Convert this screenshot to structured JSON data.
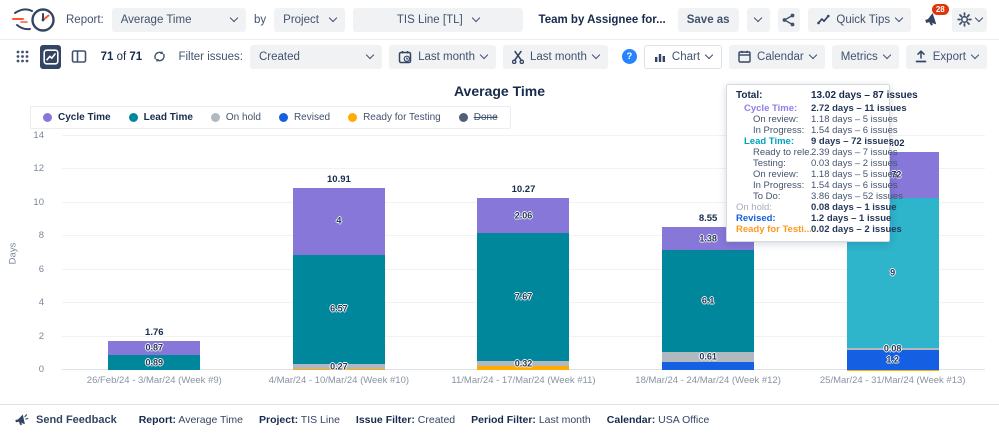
{
  "colors": {
    "purple": "#8777D9",
    "teal": "#00879C",
    "teal_highlight": "#2EB4CB",
    "gray": "#B2B8C0",
    "blue": "#1560E2",
    "orange": "#FFAB00",
    "done": "#505F79",
    "accent_navy": "#172B4D",
    "badge_red": "#DE350B",
    "help_blue": "#2684FF",
    "tt_purple": "#8F7EE7",
    "tt_teal": "#00A3BF",
    "tt_muted": "#A5ADBA",
    "tt_blue": "#1560E2",
    "tt_orange": "#FF991F",
    "text_dark": "#172B4D",
    "text_default": "#44546F"
  },
  "icons": {
    "logo": "stopwatch-with-speed-lines",
    "share": "share-nodes",
    "quick_tips": "trend-line",
    "notifications": "megaphone",
    "settings": "gear",
    "view_grid": "grid-dots",
    "view_chart": "line-chart",
    "view_board": "board-columns",
    "refresh": "refresh-arrows",
    "issue_period": "calendar-clock",
    "trim_period": "scissors",
    "help": "question-circle",
    "chart_menu": "bar-chart",
    "calendar_menu": "calendar",
    "export": "upload-arrow",
    "feedback": "megaphone"
  },
  "header": {
    "report_label": "Report:",
    "report_value": "Average Time",
    "by_label": "by",
    "group_value": "Project",
    "project_value": "TIS Line [TL]",
    "team_text": "Team by Assignee for...",
    "save_as": "Save as",
    "quick_tips": "Quick Tips",
    "notification_count": "28"
  },
  "toolbar": {
    "count_current": "71",
    "count_of": "of",
    "count_total": "71",
    "filter_issues_label": "Filter issues:",
    "issue_filter_value": "Created",
    "period_value": "Last month",
    "trim_value": "Last month",
    "chart_btn": "Chart",
    "calendar_btn": "Calendar",
    "metrics_btn": "Metrics",
    "export_btn": "Export"
  },
  "chart_data": {
    "type": "stacked-bar",
    "title": "Average Time",
    "xlabel": "",
    "ylabel": "Days",
    "ylim": [
      0,
      14
    ],
    "yticks": [
      0,
      2,
      4,
      6,
      8,
      10,
      12,
      14
    ],
    "grid": true,
    "legend_position": "top-left",
    "categories": [
      "26/Feb/24 - 3/Mar/24 (Week #9)",
      "4/Mar/24 - 10/Mar/24 (Week #10)",
      "11/Mar/24 - 17/Mar/24 (Week #11)",
      "18/Mar/24 - 24/Mar/24 (Week #12)",
      "25/Mar/24 - 31/Mar/24 (Week #13)"
    ],
    "totals": [
      1.76,
      10.91,
      10.27,
      8.55,
      13.02
    ],
    "legend": [
      {
        "label": "Cycle Time",
        "color": "purple",
        "bold": true,
        "struck": false
      },
      {
        "label": "Lead Time",
        "color": "teal",
        "bold": true,
        "struck": false
      },
      {
        "label": "On hold",
        "color": "gray",
        "bold": false,
        "struck": false
      },
      {
        "label": "Revised",
        "color": "blue",
        "bold": false,
        "struck": false
      },
      {
        "label": "Ready for Testing",
        "color": "orange",
        "bold": false,
        "struck": false
      },
      {
        "label": "Done",
        "color": "done",
        "bold": false,
        "struck": true
      }
    ],
    "bars": [
      {
        "label": "26/Feb/24 - 3/Mar/24 (Week #9)",
        "total": 1.76,
        "total_label": "1.76",
        "segments": [
          {
            "name": "Lead Time",
            "value": 0.89,
            "label": "0.89",
            "color": "teal"
          },
          {
            "name": "Cycle Time",
            "value": 0.87,
            "label": "0.87",
            "color": "purple"
          }
        ]
      },
      {
        "label": "4/Mar/24 - 10/Mar/24 (Week #10)",
        "total": 10.91,
        "total_label": "10.91",
        "segments": [
          {
            "name": "Ready for Testing",
            "value": 0.07,
            "label": "",
            "color": "orange"
          },
          {
            "name": "On hold",
            "value": 0.27,
            "label": "0.27",
            "color": "gray"
          },
          {
            "name": "Lead Time",
            "value": 6.57,
            "label": "6.57",
            "color": "teal"
          },
          {
            "name": "Cycle Time",
            "value": 4,
            "label": "4",
            "color": "purple"
          }
        ]
      },
      {
        "label": "11/Mar/24 - 17/Mar/24 (Week #11)",
        "total": 10.27,
        "total_label": "10.27",
        "segments": [
          {
            "name": "Ready for Testing",
            "value": 0.22,
            "label": "",
            "color": "orange"
          },
          {
            "name": "On hold",
            "value": 0.32,
            "label": "0.32",
            "color": "gray"
          },
          {
            "name": "Lead Time",
            "value": 7.67,
            "label": "7.67",
            "color": "teal"
          },
          {
            "name": "Cycle Time",
            "value": 2.06,
            "label": "2.06",
            "color": "purple"
          }
        ]
      },
      {
        "label": "18/Mar/24 - 24/Mar/24 (Week #12)",
        "total": 8.55,
        "total_label": "8.55",
        "segments": [
          {
            "name": "Revised",
            "value": 0.46,
            "label": "",
            "color": "blue"
          },
          {
            "name": "On hold",
            "value": 0.61,
            "label": "0.61",
            "color": "gray"
          },
          {
            "name": "Lead Time",
            "value": 6.1,
            "label": "6.1",
            "color": "teal"
          },
          {
            "name": "Cycle Time",
            "value": 1.38,
            "label": "1.38",
            "color": "purple"
          }
        ]
      },
      {
        "label": "25/Mar/24 - 31/Mar/24 (Week #13)",
        "total": 13.02,
        "total_label": "13.02",
        "segments": [
          {
            "name": "Ready for Testing",
            "value": 0.02,
            "label": "",
            "color": "orange"
          },
          {
            "name": "Revised",
            "value": 1.2,
            "label": "1.2",
            "color": "blue"
          },
          {
            "name": "On hold",
            "value": 0.08,
            "label": "0.08",
            "color": "gray"
          },
          {
            "name": "Lead Time",
            "value": 9,
            "label": "9",
            "color": "teal_highlight"
          },
          {
            "name": "Cycle Time",
            "value": 2.72,
            "label": "2.72",
            "color": "purple"
          }
        ]
      }
    ]
  },
  "tooltip": {
    "rows": [
      {
        "label": "Total:",
        "value": "13.02 days – 87 issues",
        "label_color": "text_dark",
        "indent": 0,
        "bold_label": true,
        "bold_value": true,
        "total": true
      },
      {
        "label": "Cycle Time:",
        "value": "2.72 days – 11 issues",
        "label_color": "tt_purple",
        "indent": 1,
        "bold_label": true,
        "bold_value": true,
        "total": false
      },
      {
        "label": "On review:",
        "value": "1.18 days – 5 issues",
        "label_color": "text_default",
        "indent": 2,
        "bold_label": false,
        "bold_value": false,
        "total": false
      },
      {
        "label": "In Progress:",
        "value": "1.54 days – 6 issues",
        "label_color": "text_default",
        "indent": 2,
        "bold_label": false,
        "bold_value": false,
        "total": false
      },
      {
        "label": "Lead Time:",
        "value": "9 days – 72 issues",
        "label_color": "tt_teal",
        "indent": 1,
        "bold_label": true,
        "bold_value": true,
        "total": false
      },
      {
        "label": "Ready to rele...",
        "value": "2.39 days – 7 issues",
        "label_color": "text_default",
        "indent": 2,
        "bold_label": false,
        "bold_value": false,
        "total": false
      },
      {
        "label": "Testing:",
        "value": "0.03 days – 2 issues",
        "label_color": "text_default",
        "indent": 2,
        "bold_label": false,
        "bold_value": false,
        "total": false
      },
      {
        "label": "On review:",
        "value": "1.18 days – 5 issues",
        "label_color": "text_default",
        "indent": 2,
        "bold_label": false,
        "bold_value": false,
        "total": false
      },
      {
        "label": "In Progress:",
        "value": "1.54 days – 6 issues",
        "label_color": "text_default",
        "indent": 2,
        "bold_label": false,
        "bold_value": false,
        "total": false
      },
      {
        "label": "To Do:",
        "value": "3.86 days – 52 issues",
        "label_color": "text_default",
        "indent": 2,
        "bold_label": false,
        "bold_value": false,
        "total": false
      },
      {
        "label": "On hold:",
        "value": "0.08 days – 1 issue",
        "label_color": "tt_muted",
        "indent": 0,
        "bold_label": false,
        "bold_value": true,
        "total": false
      },
      {
        "label": "Revised:",
        "value": "1.2 days – 1 issue",
        "label_color": "tt_blue",
        "indent": 0,
        "bold_label": true,
        "bold_value": true,
        "total": false
      },
      {
        "label": "Ready for Testi...",
        "value": "0.02 days – 2 issues",
        "label_color": "tt_orange",
        "indent": 0,
        "bold_label": true,
        "bold_value": true,
        "total": false
      }
    ]
  },
  "footer": {
    "send_feedback": "Send Feedback",
    "items": [
      {
        "label": "Report:",
        "value": "Average Time"
      },
      {
        "label": "Project:",
        "value": "TIS Line"
      },
      {
        "label": "Issue Filter:",
        "value": "Created"
      },
      {
        "label": "Period Filter:",
        "value": "Last month"
      },
      {
        "label": "Calendar:",
        "value": "USA Office"
      }
    ]
  }
}
